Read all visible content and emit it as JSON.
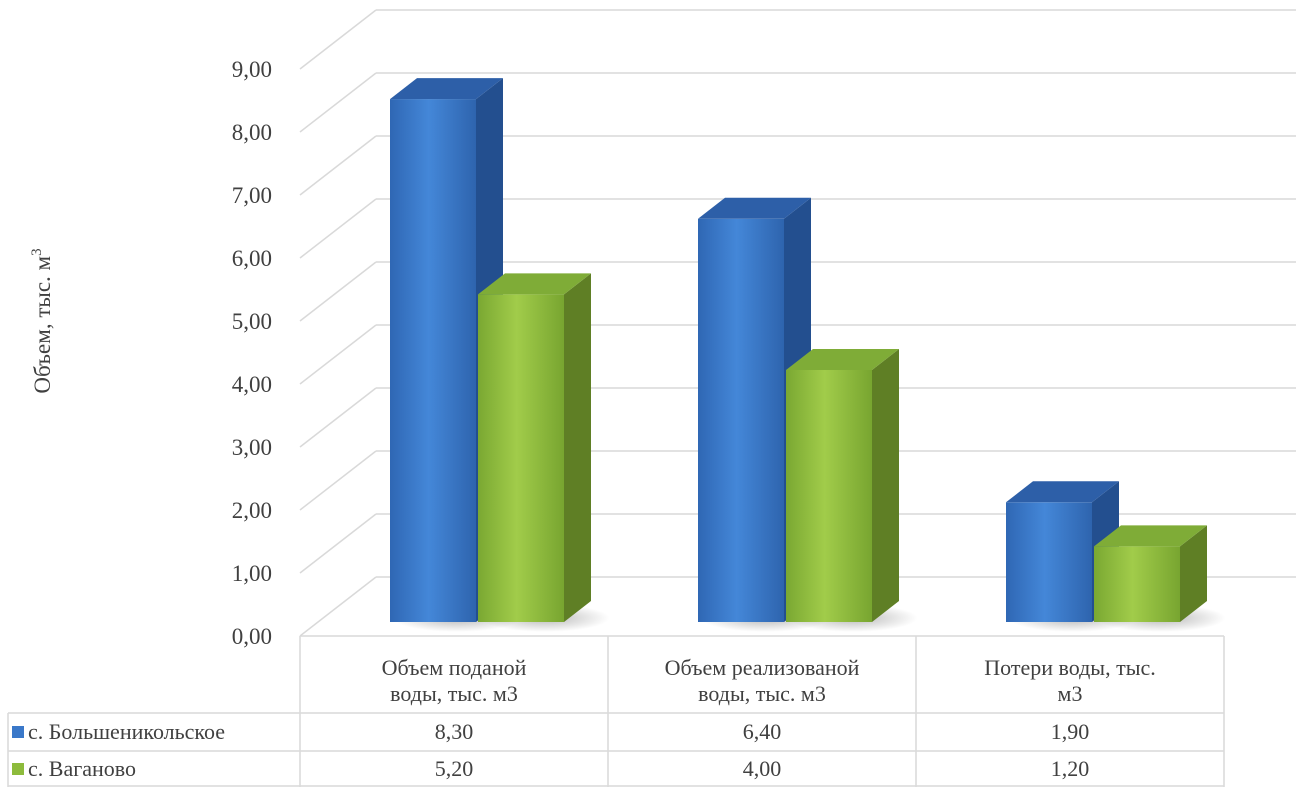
{
  "chart_data": {
    "type": "bar",
    "subtype": "3d-clustered-column-with-data-table",
    "ylabel": "Объем, тыс. м³",
    "ylabel_parts": {
      "text": "Объем, тыс. м",
      "sup": "3"
    },
    "ylim": [
      0,
      9
    ],
    "yticks": [
      "0,00",
      "1,00",
      "2,00",
      "3,00",
      "4,00",
      "5,00",
      "6,00",
      "7,00",
      "8,00",
      "9,00"
    ],
    "grid": true,
    "categories": [
      [
        "Объем поданой",
        "воды, тыс. м3"
      ],
      [
        "Объем реализованой",
        "воды, тыс. м3"
      ],
      [
        "Потери воды, тыс.",
        "м3"
      ]
    ],
    "series": [
      {
        "name": "с. Большеникольское",
        "values": [
          8.3,
          6.4,
          1.9
        ],
        "labels": [
          "8,30",
          "6,40",
          "1,90"
        ],
        "color": "#3a78c9"
      },
      {
        "name": "с. Ваганово",
        "values": [
          5.2,
          4.0,
          1.2
        ],
        "labels": [
          "5,20",
          "4,00",
          "1,20"
        ],
        "color": "#8dbb3c"
      }
    ]
  }
}
